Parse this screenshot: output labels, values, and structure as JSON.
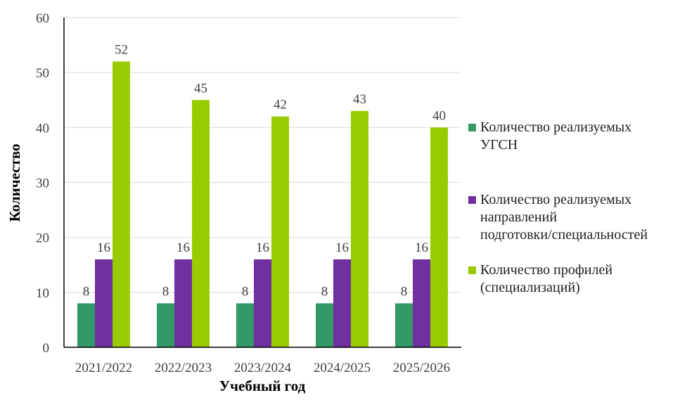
{
  "chart_data": {
    "type": "bar",
    "categories": [
      "2021/2022",
      "2022/2023",
      "2023/2024",
      "2024/2025",
      "2025/2026"
    ],
    "series": [
      {
        "name_lines": [
          "Количество реализуемых",
          "УГСН"
        ],
        "values": [
          8,
          8,
          8,
          8,
          8
        ],
        "color": "#339966"
      },
      {
        "name_lines": [
          "Количество реализуемых",
          "направлений",
          "подготовки/специальностей"
        ],
        "values": [
          16,
          16,
          16,
          16,
          16
        ],
        "color": "#7030a0"
      },
      {
        "name_lines": [
          "Количество профилей",
          "(специализаций)"
        ],
        "values": [
          52,
          45,
          42,
          43,
          40
        ],
        "color": "#99cc00"
      }
    ],
    "xlabel": "Учебный год",
    "ylabel": "Количество",
    "ylim": [
      0,
      60
    ],
    "yticks": [
      0,
      10,
      20,
      30,
      40,
      50,
      60
    ],
    "grid": true,
    "legend_position": "right"
  }
}
